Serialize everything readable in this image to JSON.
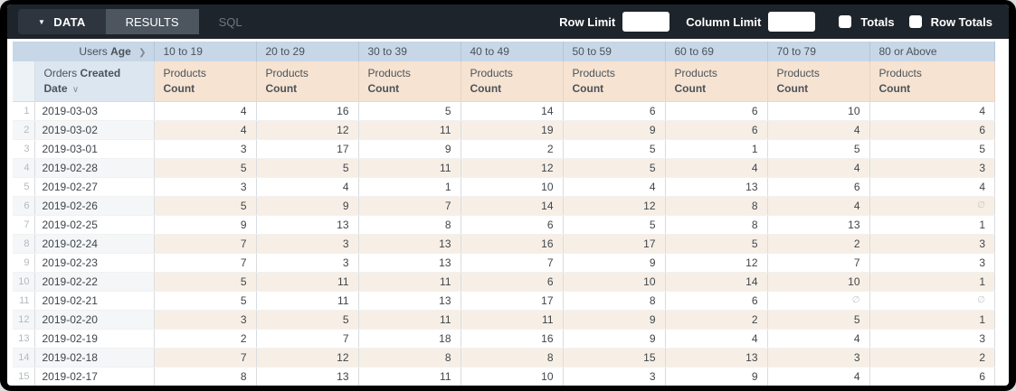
{
  "topbar": {
    "tabs": [
      {
        "label": "DATA",
        "active": true
      },
      {
        "label": "RESULTS",
        "active": false
      },
      {
        "label": "SQL",
        "active": false
      }
    ],
    "caret_icon": "▼",
    "row_limit_label": "Row Limit",
    "row_limit_value": "",
    "column_limit_label": "Column Limit",
    "column_limit_value": "",
    "totals_label": "Totals",
    "totals_checked": false,
    "row_totals_label": "Row Totals",
    "row_totals_checked": false
  },
  "table": {
    "pivot_header": {
      "prefix": "Users",
      "bold": "Age",
      "chevron": "❯"
    },
    "row_header": {
      "prefix": "Orders",
      "bold": "Created Date",
      "sort_icon": "∨"
    },
    "age_buckets": [
      "10 to 19",
      "20 to 29",
      "30 to 39",
      "40 to 49",
      "50 to 59",
      "60 to 69",
      "70 to 79",
      "80 or Above"
    ],
    "measure": {
      "line1": "Products",
      "line2": "Count"
    },
    "null_symbol": "∅",
    "rows": [
      {
        "index": 1,
        "date": "2019-03-03",
        "values": [
          4,
          16,
          5,
          14,
          6,
          6,
          10,
          4
        ]
      },
      {
        "index": 2,
        "date": "2019-03-02",
        "values": [
          4,
          12,
          11,
          19,
          9,
          6,
          4,
          6
        ]
      },
      {
        "index": 3,
        "date": "2019-03-01",
        "values": [
          3,
          17,
          9,
          2,
          5,
          1,
          5,
          5
        ]
      },
      {
        "index": 4,
        "date": "2019-02-28",
        "values": [
          5,
          5,
          11,
          12,
          5,
          4,
          4,
          3
        ]
      },
      {
        "index": 5,
        "date": "2019-02-27",
        "values": [
          3,
          4,
          1,
          10,
          4,
          13,
          6,
          4
        ]
      },
      {
        "index": 6,
        "date": "2019-02-26",
        "values": [
          5,
          9,
          7,
          14,
          12,
          8,
          4,
          null
        ]
      },
      {
        "index": 7,
        "date": "2019-02-25",
        "values": [
          9,
          13,
          8,
          6,
          5,
          8,
          13,
          1
        ]
      },
      {
        "index": 8,
        "date": "2019-02-24",
        "values": [
          7,
          3,
          13,
          16,
          17,
          5,
          2,
          3
        ]
      },
      {
        "index": 9,
        "date": "2019-02-23",
        "values": [
          7,
          3,
          13,
          7,
          9,
          12,
          7,
          3
        ]
      },
      {
        "index": 10,
        "date": "2019-02-22",
        "values": [
          5,
          11,
          11,
          6,
          10,
          14,
          10,
          1
        ]
      },
      {
        "index": 11,
        "date": "2019-02-21",
        "values": [
          5,
          11,
          13,
          17,
          8,
          6,
          null,
          null
        ]
      },
      {
        "index": 12,
        "date": "2019-02-20",
        "values": [
          3,
          5,
          11,
          11,
          9,
          2,
          5,
          1
        ]
      },
      {
        "index": 13,
        "date": "2019-02-19",
        "values": [
          2,
          7,
          18,
          16,
          9,
          4,
          4,
          3
        ]
      },
      {
        "index": 14,
        "date": "2019-02-18",
        "values": [
          7,
          12,
          8,
          8,
          15,
          13,
          3,
          2
        ]
      },
      {
        "index": 15,
        "date": "2019-02-17",
        "values": [
          8,
          13,
          11,
          10,
          3,
          9,
          4,
          6
        ]
      }
    ]
  },
  "colors": {
    "topbar": "#1e242b",
    "tab_active": "#2e353f",
    "tab_results": "#4d565f",
    "header_blue": "#c7d7e7",
    "header_blue_light": "#dbe6f0",
    "header_peach": "#f6e3d1",
    "stripe_blue": "#f4f6f8",
    "stripe_peach": "#f7efe6"
  }
}
